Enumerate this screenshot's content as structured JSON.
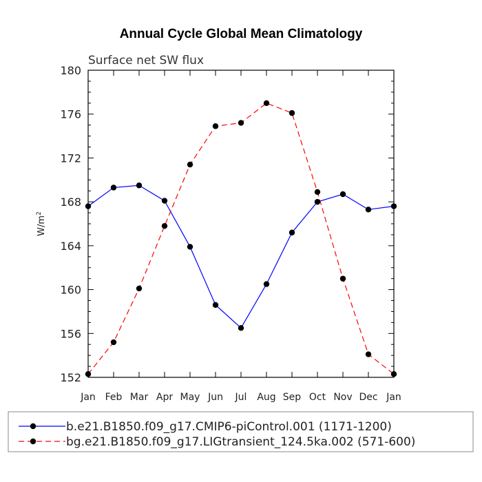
{
  "chart_data": {
    "type": "line",
    "title": "Annual Cycle Global Mean Climatology",
    "subtitle": "Surface net SW flux",
    "ylabel": "W/m",
    "ylabel_sup": "2",
    "xlabel": "",
    "categories": [
      "Jan",
      "Feb",
      "Mar",
      "Apr",
      "May",
      "Jun",
      "Jul",
      "Aug",
      "Sep",
      "Oct",
      "Nov",
      "Dec",
      "Jan"
    ],
    "ylim": [
      152,
      180
    ],
    "yticks": [
      152,
      156,
      160,
      164,
      168,
      172,
      176,
      180
    ],
    "series": [
      {
        "name": "b.e21.B1850.f09_g17.CMIP6-piControl.001 (1171-1200)",
        "color": "#0000ff",
        "dash": "solid",
        "values": [
          167.6,
          169.3,
          169.5,
          168.1,
          163.9,
          158.6,
          156.5,
          160.5,
          165.2,
          168.0,
          168.7,
          167.3,
          167.6
        ]
      },
      {
        "name": "bg.e21.B1850.f09_g17.LIGtransient_124.5ka.002 (571-600)",
        "color": "#ff0000",
        "dash": "dashed",
        "values": [
          152.3,
          155.2,
          160.1,
          165.8,
          171.4,
          174.9,
          175.2,
          177.0,
          176.1,
          168.9,
          161.0,
          154.1,
          152.3
        ]
      }
    ],
    "marker_color": "#000000",
    "legend_position": "bottom"
  }
}
